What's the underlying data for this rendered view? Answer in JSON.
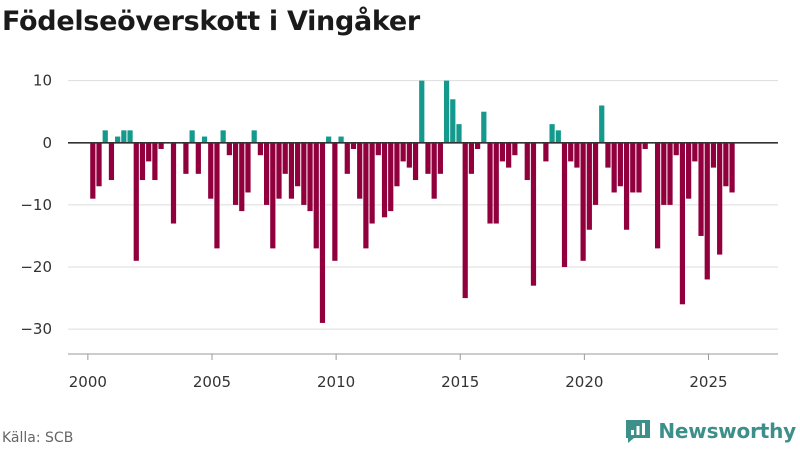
{
  "title": "Födelseöverskott i Vingåker",
  "source": "Källa: SCB",
  "brand": "Newsworthy",
  "brand_icon": "newsworthy-logo-icon",
  "colors": {
    "positive": "#14998d",
    "negative": "#91003d",
    "grid": "#dddddd",
    "zero": "#333333"
  },
  "chart_data": {
    "type": "bar",
    "title": "Födelseöverskott i Vingåker",
    "xlabel": "",
    "ylabel": "",
    "xlim": [
      1999.2,
      2027.8
    ],
    "ylim": [
      -34,
      13
    ],
    "x_ticks": [
      2000,
      2005,
      2010,
      2015,
      2020,
      2025
    ],
    "y_ticks": [
      10,
      0,
      -10,
      -20,
      -30
    ],
    "y_tick_labels": [
      "10",
      "0",
      "−10",
      "−20",
      "−30"
    ],
    "grid": true,
    "legend": "none",
    "start": "2000-01",
    "frequency": "quarterly",
    "values": [
      -9,
      -7,
      2,
      -6,
      1,
      2,
      2,
      -19,
      -6,
      -3,
      -6,
      -1,
      0,
      -13,
      0,
      -5,
      2,
      -5,
      1,
      -9,
      -17,
      2,
      -2,
      -10,
      -11,
      -8,
      2,
      -2,
      -10,
      -17,
      -9,
      -5,
      -9,
      -7,
      -10,
      -11,
      -17,
      -29,
      1,
      -19,
      1,
      -5,
      -1,
      -9,
      -17,
      -13,
      -2,
      -12,
      -11,
      -7,
      -3,
      -4,
      -6,
      10,
      -5,
      -9,
      -5,
      10,
      7,
      3,
      -25,
      -5,
      -1,
      5,
      -13,
      -13,
      -3,
      -4,
      -2,
      0,
      -6,
      -23,
      0,
      -3,
      3,
      2,
      -20,
      -3,
      -4,
      -19,
      -14,
      -10,
      6,
      -4,
      -8,
      -7,
      -14,
      -8,
      -8,
      -1,
      0,
      -17,
      -10,
      -10,
      -2,
      -26,
      -9,
      -3,
      -15,
      -22,
      -4,
      -18,
      -7,
      -8
    ]
  }
}
